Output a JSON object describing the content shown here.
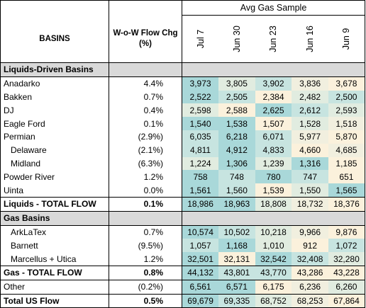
{
  "header": {
    "avg_label": "Avg Gas Sample",
    "basins_label": "BASINS",
    "chg_label": "W-o-W Flow Chg (%)",
    "dates": [
      "Jul 7",
      "Jun 30",
      "Jun 23",
      "Jun 16",
      "Jun 9"
    ]
  },
  "liquids": {
    "title": "Liquids-Driven Basins",
    "rows": [
      {
        "name": "Anadarko",
        "chg": "4.4%",
        "v": [
          "3,973",
          "3,805",
          "3,902",
          "3,836",
          "3,678"
        ]
      },
      {
        "name": "Bakken",
        "chg": "0.7%",
        "v": [
          "2,522",
          "2,505",
          "2,384",
          "2,482",
          "2,500"
        ]
      },
      {
        "name": "DJ",
        "chg": "0.4%",
        "v": [
          "2,598",
          "2,588",
          "2,625",
          "2,612",
          "2,593"
        ]
      },
      {
        "name": "Eagle Ford",
        "chg": "0.1%",
        "v": [
          "1,540",
          "1,538",
          "1,507",
          "1,528",
          "1,518"
        ]
      },
      {
        "name": "Permian",
        "chg": "(2.9%)",
        "v": [
          "6,035",
          "6,218",
          "6,071",
          "5,977",
          "5,870"
        ]
      },
      {
        "name": "Delaware",
        "chg": "(2.1%)",
        "v": [
          "4,811",
          "4,912",
          "4,833",
          "4,660",
          "4,685"
        ]
      },
      {
        "name": "Midland",
        "chg": "(6.3%)",
        "v": [
          "1,224",
          "1,306",
          "1,239",
          "1,316",
          "1,185"
        ]
      },
      {
        "name": "Powder River",
        "chg": "1.2%",
        "v": [
          "758",
          "748",
          "780",
          "747",
          "651"
        ]
      },
      {
        "name": "Uinta",
        "chg": "0.0%",
        "v": [
          "1,561",
          "1,560",
          "1,539",
          "1,550",
          "1,565"
        ]
      }
    ],
    "total": {
      "name": "Liquids - TOTAL FLOW",
      "chg": "0.1%",
      "v": [
        "18,986",
        "18,963",
        "18,808",
        "18,732",
        "18,376"
      ]
    }
  },
  "gas": {
    "title": "Gas Basins",
    "rows": [
      {
        "name": "ArkLaTex",
        "chg": "0.7%",
        "v": [
          "10,574",
          "10,502",
          "10,218",
          "9,966",
          "9,876"
        ]
      },
      {
        "name": "Barnett",
        "chg": "(9.5%)",
        "v": [
          "1,057",
          "1,168",
          "1,010",
          "912",
          "1,072"
        ]
      },
      {
        "name": "Marcellus + Utica",
        "chg": "1.2%",
        "v": [
          "32,501",
          "32,131",
          "32,542",
          "32,408",
          "32,280"
        ]
      }
    ],
    "total": {
      "name": "Gas - TOTAL FLOW",
      "chg": "0.8%",
      "v": [
        "44,132",
        "43,801",
        "43,770",
        "43,286",
        "43,228"
      ]
    }
  },
  "other": {
    "name": "Other",
    "chg": "(0.2%)",
    "v": [
      "6,561",
      "6,571",
      "6,175",
      "6,236",
      "6,260"
    ]
  },
  "total_us": {
    "name": "Total US Flow",
    "chg": "0.5%",
    "v": [
      "69,679",
      "69,335",
      "68,752",
      "68,253",
      "67,864"
    ]
  },
  "colors": {
    "high": "#a9d8d9",
    "mid_high": "#c7e4e0",
    "mid": "#e1ece0",
    "mid_low": "#f1efdf",
    "low": "#fbf1dc",
    "section_bg": "#d9d9d9"
  }
}
